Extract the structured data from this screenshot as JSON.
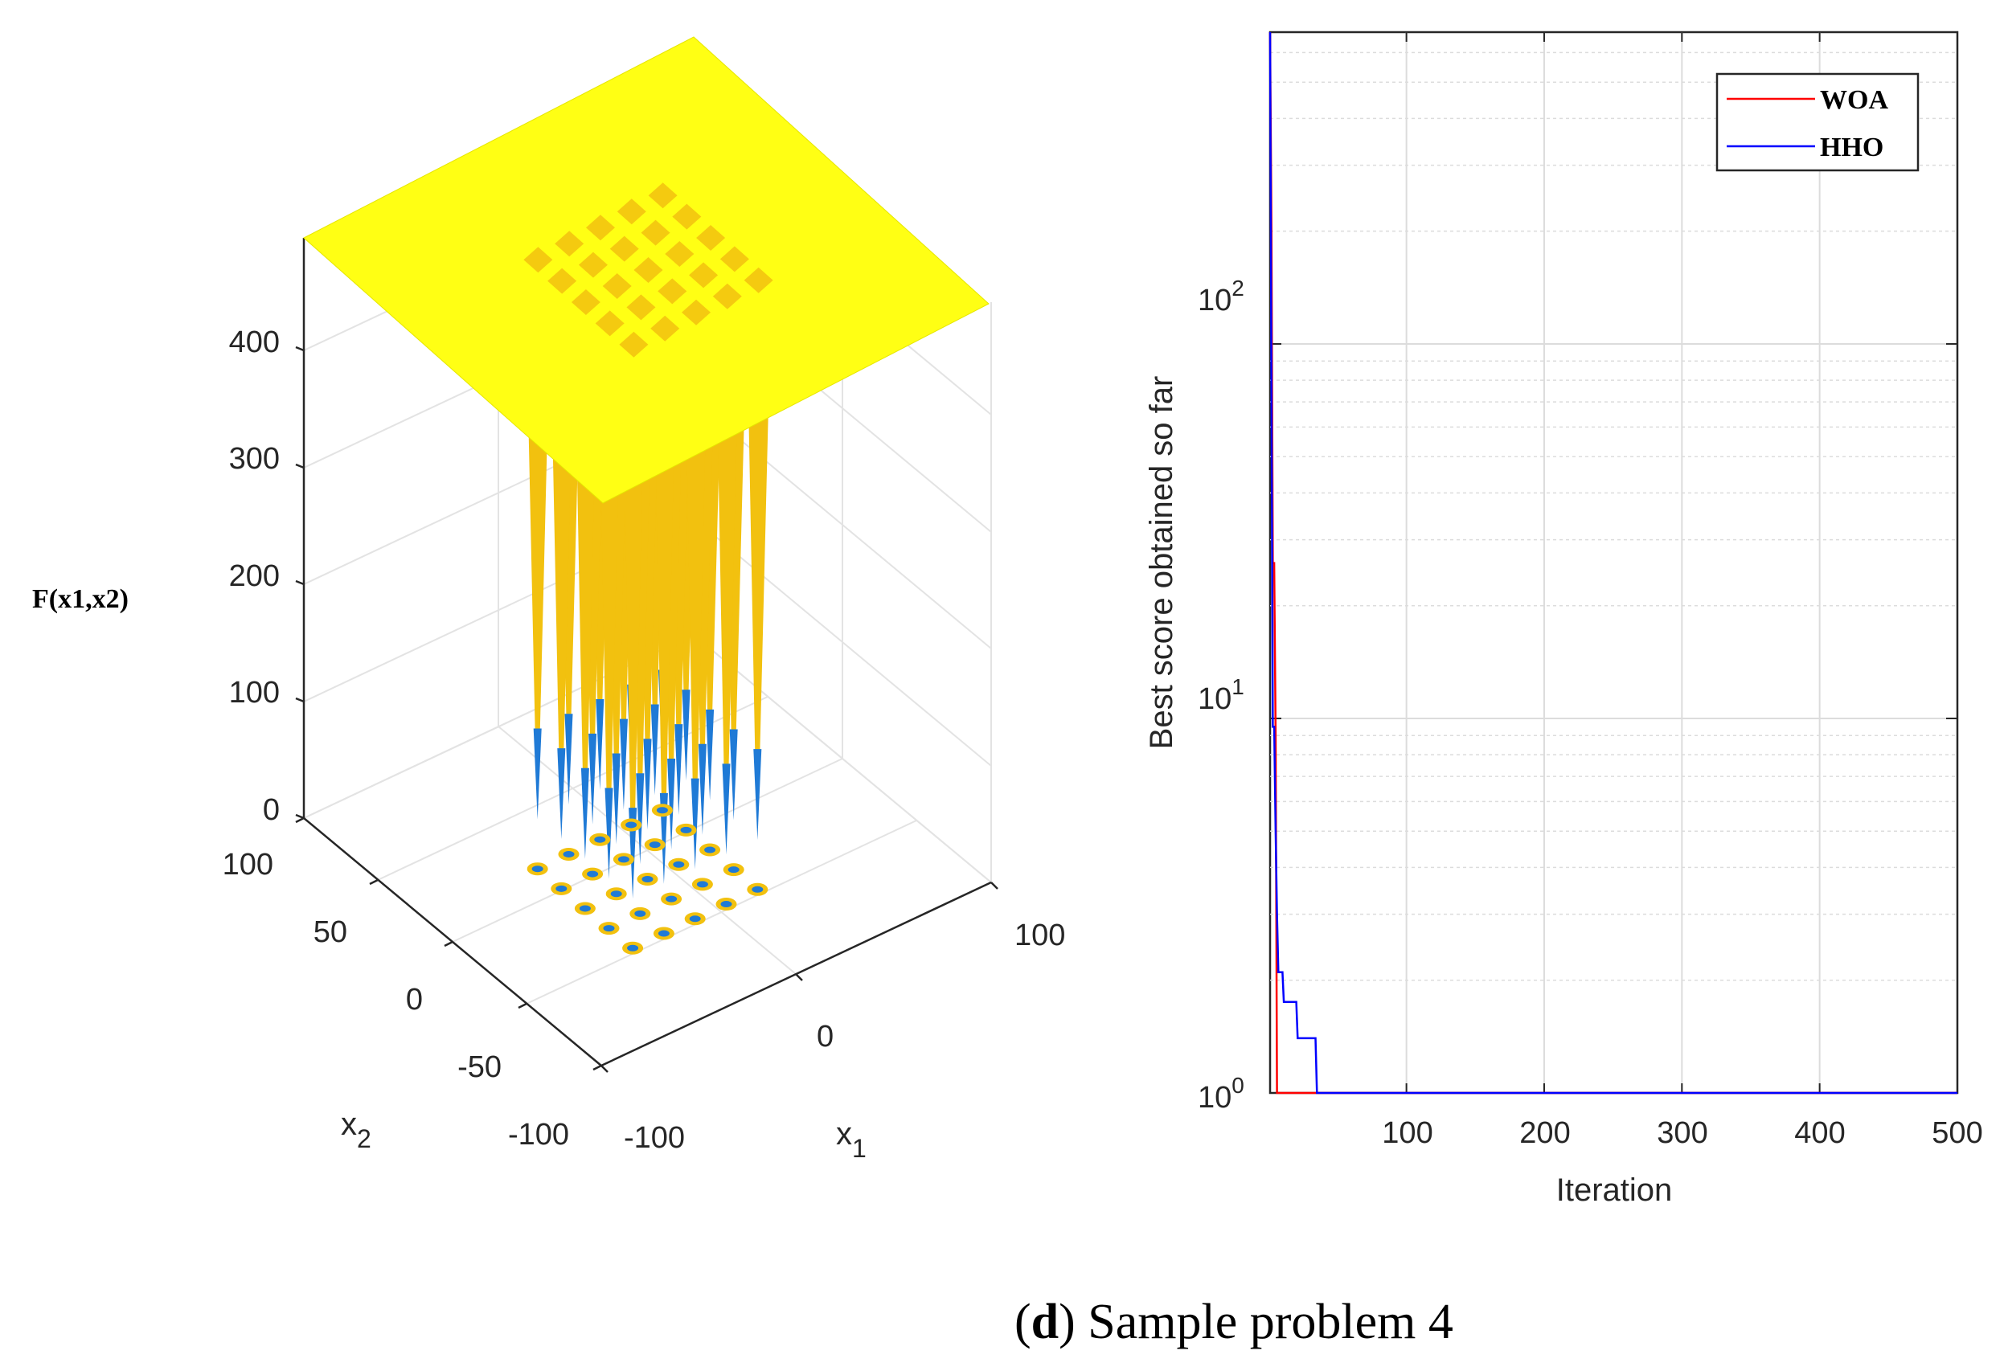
{
  "caption": {
    "open": "(",
    "letter": "d",
    "close": ")",
    "text": " Sample problem 4"
  },
  "colors": {
    "surface_top": "#ffff14",
    "surface_well": "#f2c10f",
    "well_blue": "#1f7ad6",
    "woa": "#ff0000",
    "hho": "#0000ff",
    "grid": "#dcdcdc"
  },
  "chart_data": [
    {
      "type": "surface3d",
      "title": "",
      "zlabel": "F(x1,x2)",
      "xlabel": {
        "base": "x",
        "sub": "1"
      },
      "ylabel": {
        "base": "x",
        "sub": "2"
      },
      "zticks": [
        "0",
        "100",
        "200",
        "300",
        "400"
      ],
      "xticks": [
        "-100",
        "0",
        "100"
      ],
      "yticks": [
        "-100",
        "-50",
        "0",
        "50",
        "100"
      ],
      "xlim": [
        -100,
        100
      ],
      "ylim": [
        -100,
        100
      ],
      "zlim": [
        0,
        500
      ],
      "plateau_value": 500,
      "wells": {
        "grid": "5x5",
        "centers": [
          -32,
          -16,
          0,
          16,
          32
        ],
        "min_value": 1
      }
    },
    {
      "type": "line",
      "yscale": "log",
      "xlabel": "Iteration",
      "ylabel": "Best score obtained so far",
      "xlim": [
        1,
        500
      ],
      "ylim": [
        1,
        680
      ],
      "xticks": [
        "100",
        "200",
        "300",
        "400",
        "500"
      ],
      "yticks": [
        {
          "base": "10",
          "exp": "0"
        },
        {
          "base": "10",
          "exp": "1"
        },
        {
          "base": "10",
          "exp": "2"
        }
      ],
      "legend_position": "top-right",
      "series": [
        {
          "name": "WOA",
          "x": [
            1,
            2,
            3,
            4,
            5,
            6,
            500
          ],
          "y": [
            680,
            200,
            26,
            26,
            9,
            1,
            1
          ]
        },
        {
          "name": "HHO",
          "x": [
            1,
            2,
            3,
            4,
            5,
            6,
            7,
            8,
            9,
            10,
            11,
            12,
            20,
            21,
            34,
            35,
            500
          ],
          "y": [
            680,
            80,
            9.5,
            9.5,
            5,
            3,
            2.1,
            2.1,
            2.1,
            2.1,
            1.75,
            1.75,
            1.75,
            1.4,
            1.4,
            1.0,
            1.0
          ]
        }
      ]
    }
  ]
}
